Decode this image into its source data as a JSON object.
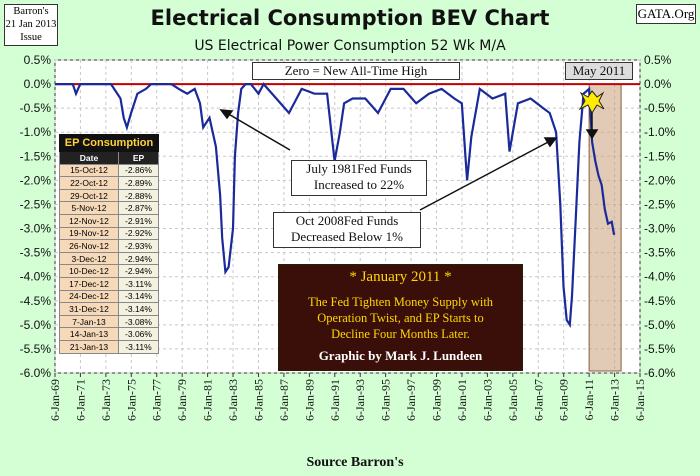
{
  "corner_left": [
    "Barron's",
    "21 Jan 2013",
    "Issue"
  ],
  "corner_right": "GATA.Org",
  "title": "Electrical Consumption BEV Chart",
  "subtitle": "US Electrical Power Consumption 52 Wk M/A",
  "zero_label": "Zero = New All-Time High",
  "annotations": {
    "may2011": "May 2011",
    "july1981": [
      "July 1981Fed Funds",
      "Increased to 22%"
    ],
    "oct2008": [
      "Oct 2008Fed Funds",
      "Decreased Below 1%"
    ]
  },
  "note": {
    "heading": "* January 2011 *",
    "lines": [
      "The Fed Tighten Money Supply with",
      "Operation Twist, and  EP Starts to",
      "Decline Four Months Later."
    ],
    "credit": "Graphic by Mark J. Lundeen"
  },
  "table": {
    "caption": "EP Consumption",
    "headers": [
      "Date",
      "EP"
    ],
    "rows": [
      [
        "15-Oct-12",
        "-2.86%"
      ],
      [
        "22-Oct-12",
        "-2.89%"
      ],
      [
        "29-Oct-12",
        "-2.88%"
      ],
      [
        "5-Nov-12",
        "-2.87%"
      ],
      [
        "12-Nov-12",
        "-2.91%"
      ],
      [
        "19-Nov-12",
        "-2.92%"
      ],
      [
        "26-Nov-12",
        "-2.93%"
      ],
      [
        "3-Dec-12",
        "-2.94%"
      ],
      [
        "10-Dec-12",
        "-2.94%"
      ],
      [
        "17-Dec-12",
        "-3.11%"
      ],
      [
        "24-Dec-12",
        "-3.14%"
      ],
      [
        "31-Dec-12",
        "-3.14%"
      ],
      [
        "7-Jan-13",
        "-3.08%"
      ],
      [
        "14-Jan-13",
        "-3.06%"
      ],
      [
        "21-Jan-13",
        "-3.11%"
      ]
    ]
  },
  "colors": {
    "background": "#d4ffd4",
    "line": "#1a2a9a",
    "zero_line": "#c00000",
    "highlight": "#c8a07a",
    "plot_bg": "#ffffff"
  },
  "chart_data": {
    "type": "line",
    "title": "Electrical Consumption BEV Chart",
    "subtitle": "US Electrical Power Consumption 52 Wk M/A",
    "xlabel": "Source Barron's",
    "ylabel": "",
    "x_ticks": [
      "6-Jan-69",
      "6-Jan-71",
      "6-Jan-73",
      "6-Jan-75",
      "6-Jan-77",
      "6-Jan-79",
      "6-Jan-81",
      "6-Jan-83",
      "6-Jan-85",
      "6-Jan-87",
      "6-Jan-89",
      "6-Jan-91",
      "6-Jan-93",
      "6-Jan-95",
      "6-Jan-97",
      "6-Jan-99",
      "6-Jan-01",
      "6-Jan-03",
      "6-Jan-05",
      "6-Jan-07",
      "6-Jan-09",
      "6-Jan-11",
      "6-Jan-13",
      "6-Jan-15"
    ],
    "y_ticks": [
      "0.5%",
      "0.0%",
      "-0.5%",
      "-1.0%",
      "-1.5%",
      "-2.0%",
      "-2.5%",
      "-3.0%",
      "-3.5%",
      "-4.0%",
      "-4.5%",
      "-5.0%",
      "-5.5%",
      "-6.0%"
    ],
    "xlim": [
      "1969-01-06",
      "2015-01-06"
    ],
    "ylim": [
      -6.0,
      0.5
    ],
    "grid": true,
    "highlight_range": [
      "2011-01-06",
      "2013-01-21"
    ],
    "series": [
      {
        "x": [
          "1969-01-06",
          "1970-06-01",
          "1970-09-01",
          "1971-01-01",
          "1972-06-01",
          "1973-06-01",
          "1974-03-01",
          "1974-06-01",
          "1974-09-01",
          "1975-01-01",
          "1975-07-01",
          "1976-03-01",
          "1976-08-01",
          "1977-06-01",
          "1978-03-01",
          "1978-10-01",
          "1979-06-01",
          "1980-01-01",
          "1980-06-01",
          "1980-09-01",
          "1981-03-01",
          "1981-06-01",
          "1981-09-01",
          "1982-01-01",
          "1982-03-01",
          "1982-06-01",
          "1982-09-01",
          "1983-01-06",
          "1983-03-01",
          "1983-06-01",
          "1983-09-01",
          "1984-01-01",
          "1984-06-01",
          "1985-01-06",
          "1985-06-01",
          "1986-06-01",
          "1987-06-01",
          "1988-06-01",
          "1989-06-01",
          "1990-06-01",
          "1991-01-01",
          "1991-06-01",
          "1991-10-01",
          "1992-06-01",
          "1993-06-01",
          "1994-06-01",
          "1995-06-01",
          "1996-06-01",
          "1997-06-01",
          "1998-06-01",
          "1999-06-01",
          "2000-06-01",
          "2001-01-01",
          "2001-06-01",
          "2001-10-01",
          "2002-06-01",
          "2003-06-01",
          "2004-06-01",
          "2004-10-01",
          "2005-06-01",
          "2006-06-01",
          "2007-06-01",
          "2007-12-01",
          "2008-06-01",
          "2008-10-01",
          "2009-01-01",
          "2009-04-01",
          "2009-07-01",
          "2009-09-01",
          "2010-01-01",
          "2010-04-01",
          "2010-08-01",
          "2011-01-06",
          "2011-04-01",
          "2011-07-01",
          "2011-10-01",
          "2012-01-01",
          "2012-04-01",
          "2012-07-01",
          "2012-10-15",
          "2012-12-17",
          "2013-01-21"
        ],
        "y": [
          0.0,
          0.0,
          -0.2,
          0.0,
          0.0,
          0.0,
          -0.3,
          -0.7,
          -0.9,
          -0.6,
          -0.2,
          -0.1,
          0.0,
          0.0,
          0.0,
          -0.1,
          -0.2,
          -0.1,
          -0.4,
          -0.9,
          -0.7,
          -1.0,
          -1.3,
          -2.3,
          -3.2,
          -3.9,
          -3.8,
          -3.0,
          -1.5,
          -0.6,
          -0.1,
          0.0,
          0.0,
          -0.2,
          0.0,
          -0.3,
          -0.6,
          -0.1,
          -0.2,
          -0.2,
          -1.6,
          -1.0,
          -0.4,
          -0.3,
          -0.3,
          -0.6,
          -0.1,
          -0.1,
          -0.4,
          -0.2,
          -0.1,
          -0.3,
          -0.4,
          -2.0,
          -1.1,
          -0.1,
          -0.3,
          -0.2,
          -1.4,
          -0.4,
          -0.3,
          -0.5,
          -0.6,
          -1.0,
          -2.5,
          -4.2,
          -4.9,
          -5.0,
          -4.4,
          -2.6,
          -1.2,
          -0.2,
          -0.1,
          -1.2,
          -1.6,
          -1.9,
          -2.1,
          -2.6,
          -2.9,
          -2.86,
          -3.11,
          -3.11
        ]
      }
    ]
  }
}
